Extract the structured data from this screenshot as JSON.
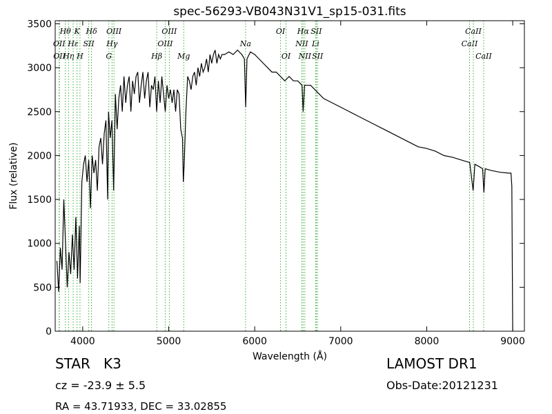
{
  "chart_data": {
    "type": "line",
    "title": "spec-56293-VB043N31V1_sp15-031.fits",
    "xlabel": "Wavelength (Å)",
    "ylabel": "Flux (relative)",
    "xlim": [
      3680,
      9136
    ],
    "ylim": [
      0,
      3535
    ],
    "xticks": [
      4000,
      5000,
      6000,
      7000,
      8000,
      9000
    ],
    "yticks": [
      0,
      500,
      1000,
      1500,
      2000,
      2500,
      3000,
      3500
    ],
    "color": "#000000",
    "line_color": "#33aa33",
    "x": [
      3700,
      3720,
      3740,
      3760,
      3780,
      3800,
      3820,
      3840,
      3860,
      3880,
      3900,
      3920,
      3940,
      3960,
      3970,
      3990,
      4010,
      4030,
      4050,
      4070,
      4090,
      4110,
      4130,
      4150,
      4170,
      4190,
      4210,
      4230,
      4250,
      4270,
      4290,
      4300,
      4320,
      4340,
      4360,
      4380,
      4400,
      4420,
      4440,
      4460,
      4480,
      4500,
      4520,
      4540,
      4560,
      4580,
      4600,
      4620,
      4640,
      4660,
      4680,
      4700,
      4720,
      4740,
      4760,
      4780,
      4800,
      4820,
      4840,
      4860,
      4880,
      4900,
      4920,
      4940,
      4960,
      4980,
      5000,
      5020,
      5040,
      5060,
      5080,
      5100,
      5120,
      5140,
      5160,
      5170,
      5180,
      5200,
      5220,
      5240,
      5260,
      5280,
      5300,
      5320,
      5340,
      5360,
      5380,
      5400,
      5420,
      5440,
      5460,
      5480,
      5500,
      5520,
      5540,
      5560,
      5580,
      5600,
      5620,
      5650,
      5700,
      5750,
      5800,
      5850,
      5880,
      5895,
      5910,
      5950,
      6000,
      6050,
      6100,
      6150,
      6200,
      6250,
      6300,
      6350,
      6400,
      6450,
      6500,
      6550,
      6563,
      6580,
      6650,
      6700,
      6750,
      6800,
      6900,
      7000,
      7100,
      7200,
      7300,
      7400,
      7500,
      7600,
      7700,
      7800,
      7900,
      8000,
      8100,
      8200,
      8300,
      8400,
      8500,
      8540,
      8560,
      8600,
      8650,
      8665,
      8680,
      8750,
      8850,
      8950,
      8980,
      8990,
      9000
    ],
    "values": [
      800,
      450,
      950,
      700,
      1500,
      1000,
      500,
      900,
      650,
      1100,
      700,
      1300,
      600,
      1200,
      550,
      1700,
      1900,
      2000,
      1700,
      1950,
      1400,
      2000,
      1800,
      1950,
      1600,
      2100,
      2200,
      1900,
      2250,
      2400,
      1500,
      2500,
      2200,
      2400,
      1600,
      2700,
      2300,
      2650,
      2800,
      2500,
      2900,
      2600,
      2800,
      2900,
      2500,
      2850,
      2700,
      2900,
      2950,
      2600,
      2800,
      2950,
      2650,
      2850,
      2950,
      2550,
      2800,
      2750,
      2900,
      2500,
      2850,
      2600,
      2900,
      2700,
      2500,
      2800,
      2650,
      2750,
      2600,
      2750,
      2500,
      2750,
      2700,
      2300,
      2200,
      1700,
      1900,
      2500,
      2900,
      2850,
      2750,
      2900,
      2950,
      2800,
      3000,
      2900,
      3050,
      2950,
      3000,
      3100,
      2950,
      3150,
      3050,
      3150,
      3200,
      3050,
      3150,
      3100,
      3150,
      3150,
      3180,
      3150,
      3200,
      3150,
      3100,
      2550,
      3100,
      3180,
      3150,
      3100,
      3050,
      3000,
      2950,
      2950,
      2900,
      2850,
      2900,
      2850,
      2850,
      2800,
      2500,
      2800,
      2800,
      2750,
      2700,
      2650,
      2600,
      2550,
      2500,
      2450,
      2400,
      2350,
      2300,
      2250,
      2200,
      2150,
      2100,
      2080,
      2050,
      2000,
      1980,
      1950,
      1920,
      1600,
      1900,
      1880,
      1850,
      1580,
      1850,
      1830,
      1810,
      1800,
      1800,
      1650,
      0
    ],
    "lines": [
      {
        "label": "OII",
        "wavelength": 3726
      },
      {
        "label": "OII",
        "wavelength": 3729
      },
      {
        "label": "Hθ",
        "wavelength": 3798
      },
      {
        "label": "Hη",
        "wavelength": 3835
      },
      {
        "label": "Hε",
        "wavelength": 3889
      },
      {
        "label": "K",
        "wavelength": 3934
      },
      {
        "label": "H",
        "wavelength": 3968
      },
      {
        "label": "SII",
        "wavelength": 4070
      },
      {
        "label": "Hδ",
        "wavelength": 4102
      },
      {
        "label": "G",
        "wavelength": 4304
      },
      {
        "label": "Hγ",
        "wavelength": 4341
      },
      {
        "label": "OIII",
        "wavelength": 4363
      },
      {
        "label": "Hβ",
        "wavelength": 4861
      },
      {
        "label": "OIII",
        "wavelength": 4959
      },
      {
        "label": "OIII",
        "wavelength": 5007
      },
      {
        "label": "Mg",
        "wavelength": 5175
      },
      {
        "label": "Na",
        "wavelength": 5893
      },
      {
        "label": "OI",
        "wavelength": 6300
      },
      {
        "label": "OI",
        "wavelength": 6364
      },
      {
        "label": "NII",
        "wavelength": 6548
      },
      {
        "label": "Hα",
        "wavelength": 6563
      },
      {
        "label": "NII",
        "wavelength": 6583
      },
      {
        "label": "Li",
        "wavelength": 6708
      },
      {
        "label": "SII",
        "wavelength": 6716
      },
      {
        "label": "SII",
        "wavelength": 6731
      },
      {
        "label": "CaII",
        "wavelength": 8498
      },
      {
        "label": "CaII",
        "wavelength": 8542
      },
      {
        "label": "CaII",
        "wavelength": 8662
      }
    ],
    "annotations": {
      "class": "STAR   K3",
      "cz": "cz = -23.9 ± 5.5",
      "coords": "RA = 43.71933, DEC = 33.02855",
      "survey": "LAMOST DR1",
      "date": "Obs-Date:20121231"
    }
  }
}
